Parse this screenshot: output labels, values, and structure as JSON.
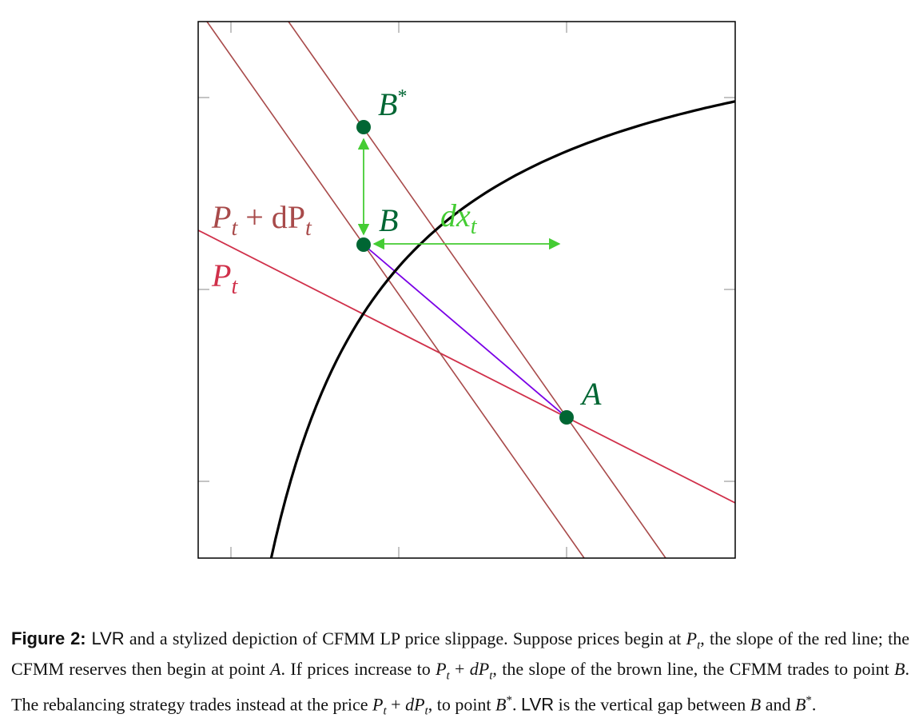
{
  "colors": {
    "curve": "#000000",
    "red_line": "#d0304a",
    "brown_line": "#a84a4a",
    "chord": "#7a00e6",
    "points": "#006633",
    "arrow": "#44cc33"
  },
  "labels": {
    "point_A": "A",
    "point_B": "B",
    "point_Bstar": "B",
    "point_Bstar_sup": "*",
    "dx_base": "dx",
    "dx_sub": "t",
    "Pt_base": "P",
    "Pt_sub": "t",
    "PtdPt_base": "P",
    "PtdPt_sub": "t",
    "PtdPt_mid": " + dP",
    "PtdPt_sub2": "t"
  },
  "caption": {
    "label": "Figure 2:",
    "p1": " LVR",
    "p2": " and a stylized depiction of CFMM LP price slippage. Suppose prices begin at ",
    "p3": ", the slope of the red line; the CFMM reserves then begin at point ",
    "p4": ". If prices increase to ",
    "p5": ", the slope of the brown line, the CFMM trades to point ",
    "p6": ". The rebalancing strategy trades instead at the price ",
    "p7": ", to point ",
    "p8": ". ",
    "p9": "LVR",
    "p10": " is the vertical gap between ",
    "p11": " and ",
    "p12": ".",
    "sym_P": "P",
    "sym_t": "t",
    "sym_plus": " + ",
    "sym_dP": "dP",
    "sym_A": "A",
    "sym_B": "B",
    "sym_star": "*"
  }
}
